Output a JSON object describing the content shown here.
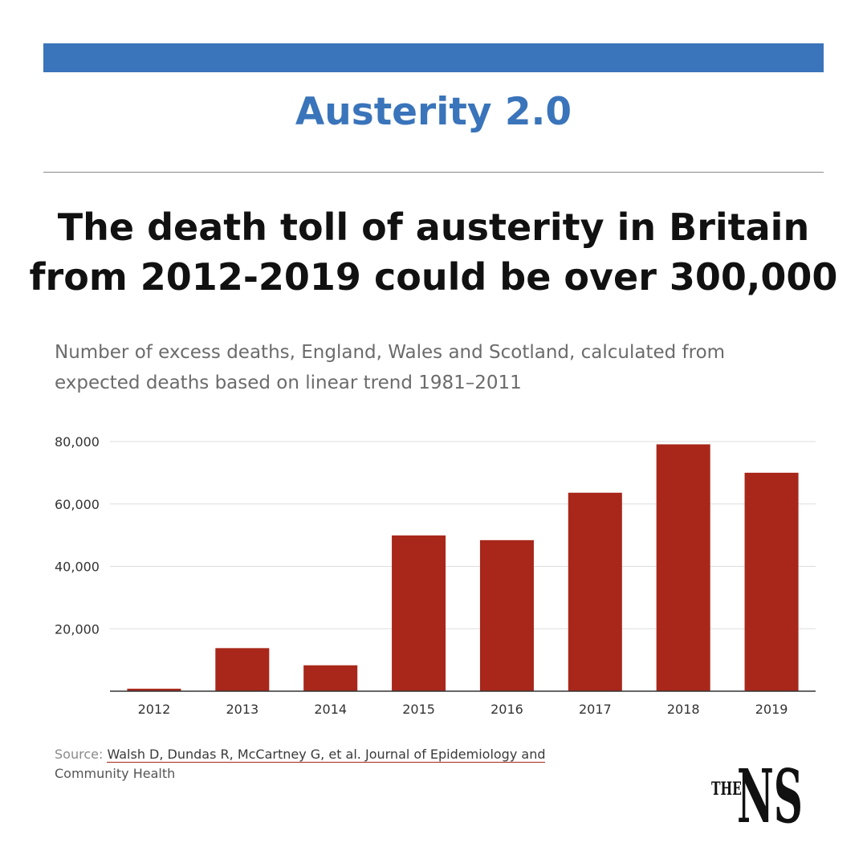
{
  "header": {
    "series_title": "Austerity 2.0",
    "headline_line1": "The death toll of austerity in Britain",
    "headline_line2": "from 2012-2019 could be over 300,000"
  },
  "colors": {
    "accent": "#3a74ba",
    "bar": "#a8271a",
    "text": "#111111"
  },
  "chart_data": {
    "type": "bar",
    "subtitle_line1": "Number of excess deaths, England, Wales and Scotland, calculated from",
    "subtitle_line2": "expected deaths based on linear trend 1981–2011",
    "categories": [
      "2012",
      "2013",
      "2014",
      "2015",
      "2016",
      "2017",
      "2018",
      "2019"
    ],
    "values": [
      800,
      13800,
      8300,
      49900,
      48400,
      63600,
      79100,
      70000
    ],
    "ylim": [
      0,
      80000
    ],
    "yticks": [
      20000,
      40000,
      60000,
      80000
    ],
    "ytick_labels": [
      "20,000",
      "40,000",
      "60,000",
      "80,000"
    ],
    "grid": true
  },
  "footer": {
    "source_label": "Source:",
    "source_link_line1": "Walsh D, Dundas R, McCartney G, et al. Journal of Epidemiology and",
    "source_line2": "Community Health",
    "logo_small": "THE",
    "logo_large": "NS"
  }
}
